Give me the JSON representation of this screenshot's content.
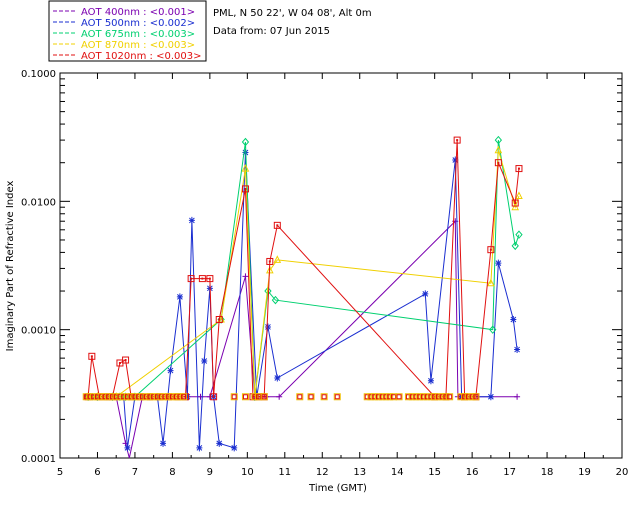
{
  "chart_data": {
    "type": "line",
    "title": "PML, N 50 22', W 04 08', Alt 0m",
    "subtitle": "Data from: 07 Jun 2015",
    "xlabel": "Time (GMT)",
    "ylabel": "Imaginary Part of Refractive Index",
    "xlim": [
      5,
      20
    ],
    "ylim": [
      0.0001,
      0.1
    ],
    "yscale": "log",
    "x_ticks": [
      "5",
      "6",
      "7",
      "8",
      "9",
      "10",
      "11",
      "12",
      "13",
      "14",
      "15",
      "16",
      "17",
      "18",
      "19",
      "20"
    ],
    "y_ticks": [
      "0.0001",
      "0.0010",
      "0.0100",
      "0.1000"
    ],
    "legend_position": "top-left",
    "series": [
      {
        "name": "AOT 400nm",
        "label": "AOT  400nm : <0.001>",
        "color": "#7b00b0",
        "marker": "plus",
        "points": [
          [
            5.8,
            0.0003
          ],
          [
            5.87,
            0.0003
          ],
          [
            6.25,
            0.0003
          ],
          [
            6.5,
            0.0003
          ],
          [
            6.75,
            0.00013
          ],
          [
            6.85,
            0.0001
          ],
          [
            7.2,
            0.0003
          ],
          [
            8.75,
            0.0003
          ],
          [
            9.0,
            0.0003
          ],
          [
            9.95,
            0.0026
          ],
          [
            10.2,
            0.0003
          ],
          [
            10.5,
            0.0003
          ],
          [
            10.85,
            0.0003
          ],
          [
            15.55,
            0.007
          ],
          [
            15.62,
            0.0003
          ],
          [
            17.2,
            0.0003
          ]
        ]
      },
      {
        "name": "AOT 500nm",
        "label": "AOT  500nm : <0.002>",
        "color": "#1a2ed0",
        "marker": "star",
        "points": [
          [
            5.75,
            0.0003
          ],
          [
            5.87,
            0.0003
          ],
          [
            6.0,
            0.0003
          ],
          [
            6.25,
            0.0003
          ],
          [
            6.5,
            0.0003
          ],
          [
            6.7,
            0.0003
          ],
          [
            6.8,
            0.00012
          ],
          [
            7.0,
            0.0003
          ],
          [
            7.2,
            0.0003
          ],
          [
            7.4,
            0.0003
          ],
          [
            7.6,
            0.0003
          ],
          [
            7.75,
            0.00013
          ],
          [
            7.95,
            0.00048
          ],
          [
            8.2,
            0.0018
          ],
          [
            8.4,
            0.0003
          ],
          [
            8.52,
            0.0071
          ],
          [
            8.72,
            0.00012
          ],
          [
            8.85,
            0.00057
          ],
          [
            9.0,
            0.0021
          ],
          [
            9.1,
            0.0003
          ],
          [
            9.25,
            0.00013
          ],
          [
            9.65,
            0.00012
          ],
          [
            9.95,
            0.024
          ],
          [
            10.25,
            0.0003
          ],
          [
            10.55,
            0.00105
          ],
          [
            10.8,
            0.00042
          ],
          [
            14.75,
            0.0019
          ],
          [
            14.9,
            0.0004
          ],
          [
            15.55,
            0.021
          ],
          [
            15.72,
            0.0003
          ],
          [
            16.5,
            0.0003
          ],
          [
            16.7,
            0.0033
          ],
          [
            17.1,
            0.0012
          ],
          [
            17.2,
            0.0007
          ]
        ]
      },
      {
        "name": "AOT 675nm",
        "label": "AOT  675nm : <0.003>",
        "color": "#00d070",
        "marker": "diamond",
        "points": [
          [
            5.75,
            0.0003
          ],
          [
            6.0,
            0.0003
          ],
          [
            6.4,
            0.0003
          ],
          [
            6.6,
            0.0003
          ],
          [
            6.75,
            0.0003
          ],
          [
            7.0,
            0.0003
          ],
          [
            9.3,
            0.0012
          ],
          [
            9.95,
            0.029
          ],
          [
            10.2,
            0.0003
          ],
          [
            10.55,
            0.002
          ],
          [
            10.75,
            0.0017
          ],
          [
            16.55,
            0.001
          ],
          [
            16.7,
            0.03
          ],
          [
            17.15,
            0.0045
          ],
          [
            17.25,
            0.0055
          ]
        ]
      },
      {
        "name": "AOT 870nm",
        "label": "AOT  870nm : <0.003>",
        "color": "#f0d000",
        "marker": "triangle",
        "points": [
          [
            5.75,
            0.0003
          ],
          [
            6.0,
            0.0003
          ],
          [
            6.5,
            0.0003
          ],
          [
            9.3,
            0.0012
          ],
          [
            9.95,
            0.018
          ],
          [
            10.2,
            0.0003
          ],
          [
            10.6,
            0.0029
          ],
          [
            10.8,
            0.0035
          ],
          [
            16.5,
            0.0023
          ],
          [
            16.7,
            0.025
          ],
          [
            17.15,
            0.009
          ],
          [
            17.25,
            0.011
          ]
        ]
      },
      {
        "name": "AOT 1020nm",
        "label": "AOT 1020nm : <0.003>",
        "color": "#e01010",
        "marker": "square",
        "points": [
          [
            5.75,
            0.0003
          ],
          [
            5.85,
            0.00062
          ],
          [
            6.05,
            0.0003
          ],
          [
            6.25,
            0.0003
          ],
          [
            6.4,
            0.0003
          ],
          [
            6.6,
            0.00055
          ],
          [
            6.75,
            0.00058
          ],
          [
            6.9,
            0.0003
          ],
          [
            7.15,
            0.0003
          ],
          [
            7.4,
            0.0003
          ],
          [
            7.65,
            0.0003
          ],
          [
            7.9,
            0.0003
          ],
          [
            8.15,
            0.0003
          ],
          [
            8.35,
            0.0003
          ],
          [
            8.5,
            0.0025
          ],
          [
            8.8,
            0.0025
          ],
          [
            9.0,
            0.0025
          ],
          [
            9.1,
            0.0003
          ],
          [
            9.25,
            0.0012
          ],
          [
            9.95,
            0.0125
          ],
          [
            10.15,
            0.0003
          ],
          [
            10.3,
            0.0003
          ],
          [
            10.45,
            0.0003
          ],
          [
            10.6,
            0.0034
          ],
          [
            10.8,
            0.0065
          ],
          [
            15.0,
            0.0003
          ],
          [
            15.3,
            0.0003
          ],
          [
            15.6,
            0.03
          ],
          [
            15.8,
            0.0003
          ],
          [
            16.1,
            0.0003
          ],
          [
            16.5,
            0.0042
          ],
          [
            16.7,
            0.02
          ],
          [
            17.15,
            0.0097
          ],
          [
            17.25,
            0.018
          ]
        ]
      }
    ],
    "baseline_markers": {
      "value": 0.0003,
      "x": [
        5.7,
        5.8,
        5.9,
        6.0,
        6.1,
        6.2,
        6.3,
        6.4,
        6.5,
        6.6,
        6.7,
        6.8,
        6.9,
        7.0,
        7.1,
        7.2,
        7.3,
        7.4,
        7.5,
        7.6,
        7.7,
        7.8,
        7.9,
        8.0,
        8.1,
        8.2,
        8.3,
        9.65,
        9.95,
        10.2,
        10.3,
        10.45,
        11.4,
        11.7,
        12.05,
        12.4,
        13.2,
        13.3,
        13.4,
        13.5,
        13.6,
        13.7,
        13.8,
        13.9,
        14.05,
        14.3,
        14.4,
        14.5,
        14.6,
        14.7,
        14.8,
        14.9,
        15.0,
        15.1,
        15.2,
        15.3,
        15.4,
        15.7,
        15.8,
        15.9,
        16.0,
        16.1
      ]
    }
  }
}
